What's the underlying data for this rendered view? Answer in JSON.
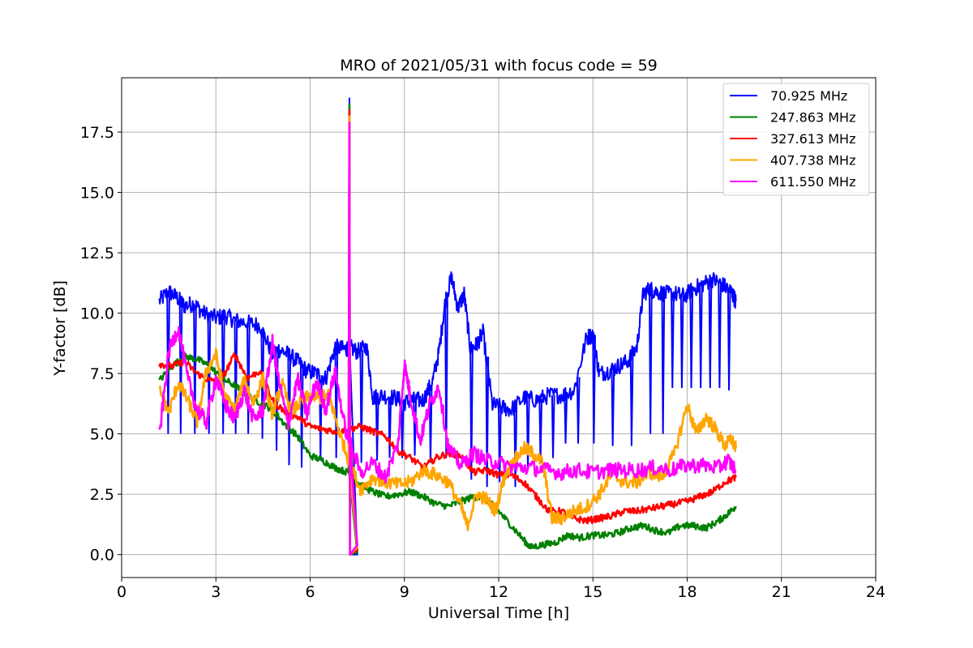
{
  "chart_data": {
    "type": "line",
    "title": "MRO of 2021/05/31 with focus code = 59",
    "xlabel": "Universal Time [h]",
    "ylabel": "Y-factor [dB]",
    "xlim": [
      0,
      24
    ],
    "ylim": [
      -0.95,
      19.75
    ],
    "xticks": [
      0,
      3,
      6,
      9,
      12,
      15,
      18,
      21,
      24
    ],
    "yticks": [
      0.0,
      2.5,
      5.0,
      7.5,
      10.0,
      12.5,
      15.0,
      17.5
    ],
    "xtick_labels": [
      "0",
      "3",
      "6",
      "9",
      "12",
      "15",
      "18",
      "21",
      "24"
    ],
    "ytick_labels": [
      "0.0",
      "2.5",
      "5.0",
      "7.5",
      "10.0",
      "12.5",
      "15.0",
      "17.5"
    ],
    "grid": true,
    "legend_position": "top-right",
    "series": [
      {
        "name": "70.925 MHz",
        "label": " 70.925 MHz",
        "color": "#0000ff",
        "x": [
          1.2,
          1.5,
          1.8,
          2.0,
          2.3,
          2.6,
          3.0,
          3.3,
          3.6,
          4.0,
          4.4,
          4.8,
          5.0,
          5.3,
          5.6,
          5.9,
          6.2,
          6.5,
          6.8,
          7.1,
          7.25,
          7.5,
          7.8,
          8.0,
          8.3,
          8.7,
          9.0,
          9.3,
          9.6,
          9.9,
          10.1,
          10.3,
          10.5,
          10.7,
          10.9,
          11.1,
          11.3,
          11.5,
          11.8,
          12.1,
          12.4,
          12.8,
          13.2,
          13.6,
          14.0,
          14.4,
          14.8,
          15.0,
          15.2,
          15.5,
          15.8,
          16.1,
          16.4,
          16.6,
          16.8,
          17.0,
          17.3,
          17.6,
          17.9,
          18.2,
          18.5,
          18.8,
          19.1,
          19.4,
          19.55
        ],
        "y": [
          10.5,
          10.9,
          10.6,
          10.3,
          10.4,
          10.0,
          9.8,
          9.9,
          9.7,
          9.6,
          9.5,
          8.3,
          8.5,
          8.3,
          8.0,
          7.6,
          7.5,
          7.3,
          8.6,
          8.5,
          8.6,
          8.4,
          8.6,
          6.5,
          6.6,
          6.5,
          6.3,
          6.4,
          6.4,
          7.2,
          8.4,
          10.5,
          11.5,
          10.2,
          10.8,
          8.5,
          8.7,
          9.2,
          6.2,
          6.1,
          6.0,
          6.5,
          6.4,
          6.6,
          6.6,
          6.8,
          9.0,
          9.1,
          7.5,
          7.6,
          7.8,
          8.0,
          8.6,
          10.8,
          11.0,
          10.9,
          10.8,
          10.8,
          10.7,
          11.0,
          11.2,
          11.4,
          11.2,
          10.9,
          10.5
        ],
        "dips_x": [
          1.45,
          1.85,
          2.3,
          2.75,
          3.2,
          3.6,
          4.0,
          4.45,
          4.9,
          5.3,
          5.7,
          6.3,
          6.8,
          7.6,
          8.1,
          8.5,
          8.9,
          9.3,
          9.8,
          10.3,
          11.1,
          11.6,
          12.0,
          12.5,
          12.9,
          13.3,
          13.7,
          14.1,
          14.5,
          15.0,
          15.6,
          16.2,
          16.8,
          17.2,
          17.5,
          17.8,
          18.1,
          18.4,
          18.7,
          19.0,
          19.3
        ],
        "dips_y": [
          5.0,
          5.0,
          5.0,
          5.0,
          5.0,
          5.0,
          5.0,
          4.8,
          4.3,
          3.7,
          3.6,
          3.9,
          4.0,
          3.8,
          3.9,
          4.0,
          4.0,
          4.1,
          3.8,
          4.0,
          3.1,
          2.8,
          3.0,
          2.8,
          3.5,
          3.8,
          4.0,
          4.6,
          4.6,
          4.6,
          4.5,
          4.5,
          5.0,
          5.0,
          6.9,
          6.9,
          6.9,
          6.9,
          6.9,
          6.9,
          6.8
        ]
      },
      {
        "name": "247.863 MHz",
        "label": "247.863 MHz",
        "color": "#008000",
        "x": [
          1.2,
          1.6,
          2.0,
          2.4,
          2.8,
          3.2,
          3.6,
          4.0,
          4.4,
          4.8,
          5.2,
          5.6,
          6.0,
          6.4,
          6.8,
          7.2,
          7.6,
          8.0,
          8.4,
          8.8,
          9.2,
          9.6,
          10.0,
          10.4,
          10.8,
          11.2,
          11.6,
          12.0,
          12.4,
          12.8,
          13.0,
          13.4,
          13.8,
          14.2,
          14.6,
          15.0,
          15.4,
          15.8,
          16.2,
          16.6,
          17.0,
          17.4,
          17.8,
          18.2,
          18.6,
          19.0,
          19.3,
          19.55
        ],
        "y": [
          7.2,
          7.8,
          8.2,
          8.1,
          7.8,
          7.3,
          7.0,
          6.6,
          6.3,
          6.0,
          5.4,
          4.9,
          4.1,
          3.9,
          3.6,
          3.4,
          2.9,
          2.6,
          2.4,
          2.5,
          2.6,
          2.4,
          2.1,
          2.0,
          2.2,
          2.4,
          2.3,
          1.8,
          1.2,
          0.6,
          0.3,
          0.4,
          0.5,
          0.8,
          0.7,
          0.8,
          0.8,
          0.9,
          1.1,
          1.2,
          1.0,
          0.9,
          1.2,
          1.2,
          1.1,
          1.4,
          1.7,
          2.0
        ]
      },
      {
        "name": "327.613 MHz",
        "label": "327.613 MHz",
        "color": "#ff0000",
        "x": [
          1.2,
          1.6,
          2.0,
          2.4,
          2.8,
          3.2,
          3.6,
          4.0,
          4.4,
          4.8,
          5.2,
          5.6,
          6.0,
          6.4,
          6.8,
          7.2,
          7.6,
          8.0,
          8.4,
          8.8,
          9.2,
          9.6,
          10.0,
          10.4,
          10.8,
          11.2,
          11.6,
          12.0,
          12.4,
          12.8,
          13.2,
          13.6,
          14.0,
          14.4,
          14.8,
          15.2,
          15.6,
          16.0,
          16.4,
          16.8,
          17.2,
          17.6,
          18.0,
          18.4,
          18.8,
          19.2,
          19.55
        ],
        "y": [
          7.9,
          7.8,
          8.0,
          7.5,
          7.2,
          7.3,
          8.3,
          7.3,
          7.6,
          6.4,
          5.9,
          5.7,
          5.3,
          5.2,
          5.1,
          5.2,
          5.3,
          5.1,
          4.9,
          4.3,
          4.0,
          3.6,
          4.0,
          4.2,
          4.1,
          3.4,
          3.5,
          3.3,
          3.3,
          3.0,
          2.4,
          1.8,
          1.8,
          1.5,
          1.4,
          1.5,
          1.6,
          1.8,
          1.8,
          1.9,
          2.0,
          2.1,
          2.2,
          2.4,
          2.6,
          3.0,
          3.2
        ]
      },
      {
        "name": "407.738 MHz",
        "label": "407.738 MHz",
        "color": "#ffa500",
        "x": [
          1.2,
          1.5,
          1.8,
          2.1,
          2.4,
          2.7,
          3.0,
          3.3,
          3.6,
          3.9,
          4.2,
          4.5,
          4.8,
          5.1,
          5.4,
          5.7,
          6.0,
          6.3,
          6.6,
          6.9,
          7.2,
          7.6,
          8.0,
          8.4,
          8.8,
          9.2,
          9.6,
          10.0,
          10.4,
          10.8,
          11.0,
          11.3,
          11.6,
          11.9,
          12.2,
          12.5,
          12.8,
          13.1,
          13.4,
          13.7,
          14.0,
          14.4,
          14.8,
          15.2,
          15.6,
          16.0,
          16.4,
          16.8,
          17.2,
          17.6,
          18.0,
          18.3,
          18.6,
          18.9,
          19.2,
          19.4,
          19.55
        ],
        "y": [
          6.8,
          5.9,
          7.1,
          6.4,
          5.5,
          7.6,
          8.3,
          6.5,
          6.0,
          7.2,
          6.3,
          7.3,
          5.8,
          7.1,
          5.9,
          6.3,
          6.6,
          6.5,
          6.6,
          5.2,
          4.0,
          2.7,
          3.2,
          3.0,
          2.9,
          3.0,
          3.5,
          3.3,
          3.0,
          2.0,
          1.2,
          2.5,
          2.3,
          1.8,
          3.3,
          3.9,
          4.4,
          4.2,
          3.8,
          1.5,
          1.5,
          1.8,
          2.0,
          2.5,
          3.3,
          3.0,
          3.0,
          3.4,
          3.2,
          4.2,
          6.2,
          5.0,
          5.7,
          5.2,
          4.5,
          4.8,
          4.4
        ]
      },
      {
        "name": "611.550 MHz",
        "label": "611.550 MHz",
        "color": "#ff00ff",
        "x": [
          1.2,
          1.5,
          1.8,
          2.1,
          2.4,
          2.7,
          3.0,
          3.3,
          3.6,
          3.9,
          4.2,
          4.5,
          4.8,
          5.0,
          5.3,
          5.6,
          5.9,
          6.2,
          6.5,
          6.8,
          7.1,
          7.6,
          8.0,
          8.4,
          8.8,
          9.0,
          9.2,
          9.5,
          9.8,
          10.1,
          10.4,
          10.8,
          11.2,
          11.6,
          12.0,
          12.5,
          13.0,
          13.5,
          14.0,
          14.5,
          15.0,
          15.5,
          16.0,
          16.5,
          17.0,
          17.5,
          18.0,
          18.5,
          19.0,
          19.3,
          19.55
        ],
        "y": [
          4.9,
          8.4,
          9.4,
          7.3,
          6.0,
          5.5,
          7.3,
          6.2,
          5.6,
          6.8,
          5.6,
          6.0,
          8.8,
          7.2,
          5.4,
          7.3,
          5.8,
          7.2,
          6.0,
          7.6,
          5.3,
          3.4,
          3.8,
          3.2,
          4.6,
          7.9,
          6.5,
          4.7,
          6.2,
          7.0,
          4.4,
          3.7,
          4.2,
          3.9,
          3.8,
          3.6,
          3.6,
          3.5,
          3.4,
          3.5,
          3.4,
          3.5,
          3.5,
          3.5,
          3.6,
          3.5,
          3.7,
          3.7,
          3.6,
          3.9,
          3.5
        ]
      }
    ],
    "spike": {
      "x": 7.25,
      "y_max": 18.9,
      "drop_x": 7.5,
      "drop_y": 0.0
    }
  }
}
